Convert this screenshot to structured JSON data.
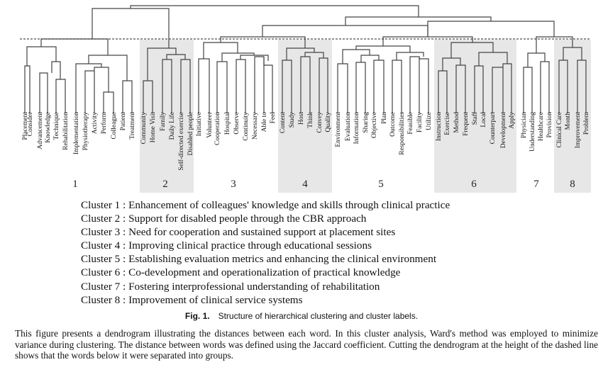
{
  "leaves": [
    [
      "Placement",
      "Consider",
      "Advancement",
      "Knowledge",
      "Technique",
      "Rehabilitation",
      "Implementation",
      "Physiotherapy",
      "Activity",
      "Perform",
      "Colleague",
      "Patient",
      "Treatment"
    ],
    [
      "Community",
      "Home Visit",
      "Family",
      "Daily Life",
      "Self-directed exercise",
      "Disabled people"
    ],
    [
      "Initiative",
      "Volunteer",
      "Cooperation",
      "Hospital",
      "Observe",
      "Continuity",
      "Necessary",
      "Able to",
      "Feel"
    ],
    [
      "Content",
      "Study",
      "Host",
      "Think",
      "Convey",
      "Quality"
    ],
    [
      "Environment",
      "Evaluation",
      "Information",
      "Sharing",
      "Objective",
      "Plan",
      "Outcome",
      "Responsibilities",
      "Feasible",
      "Facility",
      "Utilize"
    ],
    [
      "Instruction",
      "Exercise",
      "Method",
      "Frequent",
      "Staff",
      "Local",
      "Counterpart",
      "Development",
      "Apply"
    ],
    [
      "Physician",
      "Understanding",
      "Healthcare",
      "Provision"
    ],
    [
      "Clinical Care",
      "Month",
      "Improvement",
      "Problem"
    ]
  ],
  "clusters": [
    {
      "number": "1",
      "label": "Cluster 1 : Enhancement of colleagues' knowledge and skills through clinical practice",
      "shaded": false
    },
    {
      "number": "2",
      "label": "Cluster 2 : Support for disabled people through the CBR approach",
      "shaded": true
    },
    {
      "number": "3",
      "label": "Cluster 3 : Need for cooperation and sustained support at placement sites",
      "shaded": false
    },
    {
      "number": "4",
      "label": "Cluster 4 : Improving clinical practice through educational sessions",
      "shaded": true
    },
    {
      "number": "5",
      "label": "Cluster 5 : Establishing evaluation metrics and enhancing the clinical environment",
      "shaded": false
    },
    {
      "number": "6",
      "label": "Cluster 6 : Co-development and operationalization of practical knowledge",
      "shaded": true
    },
    {
      "number": "7",
      "label": "Cluster 7 : Fostering interprofessional understanding of rehabilitation",
      "shaded": false
    },
    {
      "number": "8",
      "label": "Cluster 8 : Improvement of clinical service systems",
      "shaded": true
    }
  ],
  "caption": {
    "fig": "Fig. 1.",
    "title": "Structure of hierarchical clustering and cluster labels."
  },
  "description": "This figure presents a dendrogram illustrating the distances between each word. In this cluster analysis, Ward's method was employed to minimize variance during clustering. The distance between words was defined using the Jaccard coefficient. Cutting the dendrogram at the height of the dashed line shows that the words below it were separated into groups.",
  "colors": {
    "shade": "#e6e7e6",
    "line": "#444444",
    "dashed": "#222222"
  }
}
